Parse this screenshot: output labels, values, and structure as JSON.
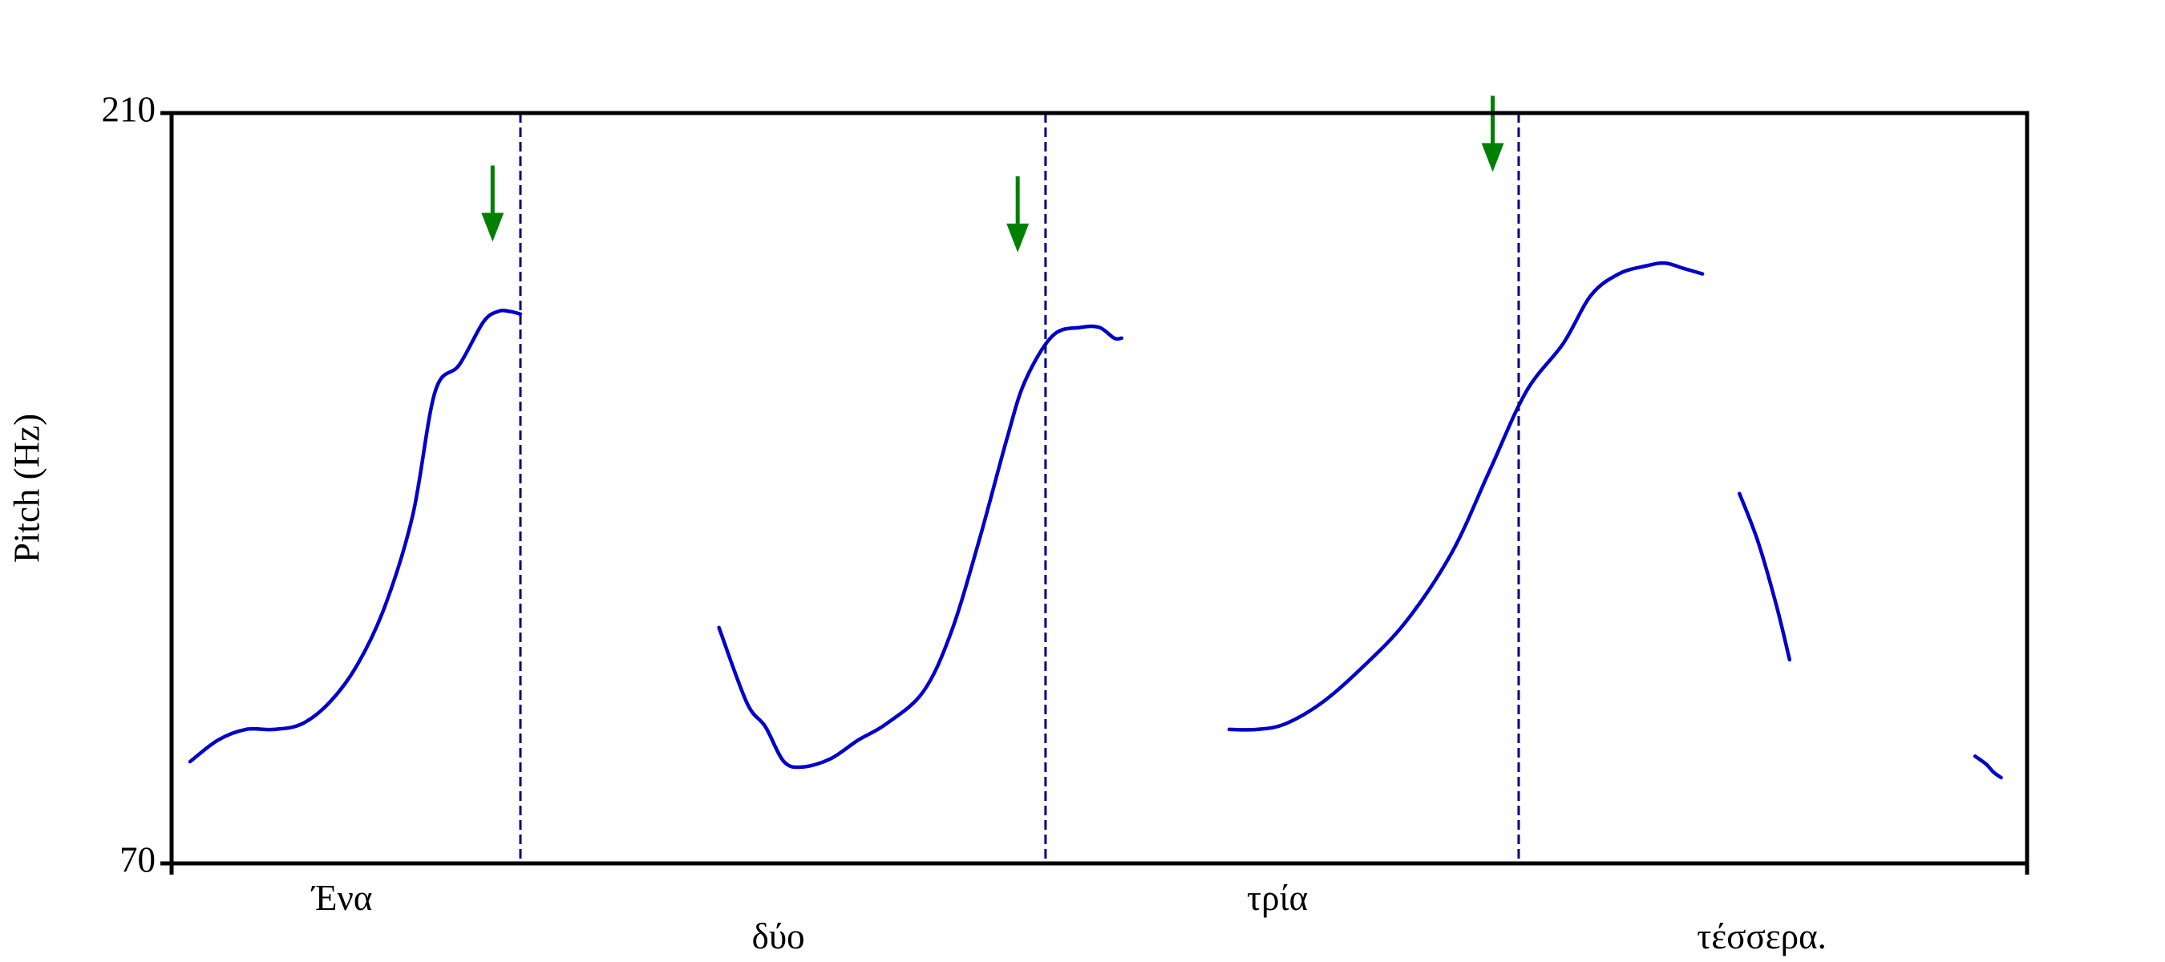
{
  "chart_data": {
    "type": "line",
    "title": "",
    "xlabel": "",
    "ylabel": "Pitch (Hz)",
    "ylim": [
      70,
      210
    ],
    "yticks": [
      "210",
      "70"
    ],
    "grid": false,
    "legend": "none",
    "time_domain": [
      0,
      100
    ],
    "line_color": "#0000cc",
    "boundary_color": "#000080",
    "arrow_color": "#008000",
    "series": [
      {
        "x": [
          1,
          2.5,
          4,
          5.5,
          7,
          8.5,
          10,
          11.5,
          13,
          14.2,
          15.5,
          16.8,
          17.6,
          18.2,
          18.8
        ],
        "y": [
          89,
          93,
          95,
          95,
          96,
          100,
          107,
          118,
          135,
          158,
          163,
          171,
          173,
          173,
          172.5
        ]
      },
      {
        "x": [
          29.5,
          31,
          32,
          33,
          34,
          35.5,
          37,
          38.5,
          40.5,
          42,
          43.5,
          45,
          46,
          47.5,
          49,
          50,
          50.8,
          51.2
        ],
        "y": [
          114,
          100,
          95.5,
          89,
          88,
          89.5,
          93,
          96,
          102,
          113,
          130,
          149,
          160,
          168.5,
          170,
          170,
          168,
          168
        ]
      },
      {
        "x": [
          57,
          58.5,
          60,
          62,
          64,
          66.5,
          69,
          71,
          73,
          75,
          76.5,
          78,
          79.5,
          80.5,
          81.5,
          82.5
        ],
        "y": [
          95,
          95,
          96,
          100,
          106,
          115,
          128,
          143,
          158,
          167,
          176,
          180,
          181.5,
          182,
          181,
          180
        ]
      },
      {
        "x": [
          84.5,
          85.5,
          86.5,
          87.2
        ],
        "y": [
          139,
          130,
          118,
          108
        ]
      },
      {
        "x": [
          97.2,
          97.8,
          98.2,
          98.6
        ],
        "y": [
          90,
          88.5,
          87,
          86
        ]
      }
    ],
    "boundaries": [
      18.8,
      47.1,
      72.6
    ],
    "arrows": [
      {
        "x": 17.3,
        "y": 186
      },
      {
        "x": 45.6,
        "y": 184
      },
      {
        "x": 71.2,
        "y": 199
      }
    ],
    "words": [
      {
        "text": "Ένα",
        "x": 9.2,
        "row": 1
      },
      {
        "text": "δύο",
        "x": 32.7,
        "row": 2
      },
      {
        "text": "τρία",
        "x": 59.6,
        "row": 1
      },
      {
        "text": "τέσσερα.",
        "x": 85.7,
        "row": 2
      }
    ]
  }
}
